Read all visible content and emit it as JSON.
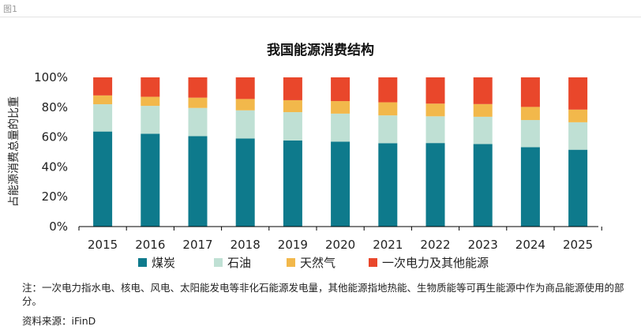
{
  "figure_label": "图1",
  "note": "注：一次电力指水电、核电、风电、太阳能发电等非化石能源发电量，其他能源指地热能、生物质能等可再生能源中作为商品能源使用的部分。",
  "source_label": "资料来源：",
  "source_value": "iFinD",
  "colors": {
    "coal": "#0e7a8c",
    "oil": "#bfe0d4",
    "gas": "#f2b84b",
    "primary_power": "#e9472b"
  },
  "chart_data": {
    "type": "bar",
    "stacked": true,
    "title": "我国能源消费结构",
    "xlabel": "",
    "ylabel": "占能源消费总量的比重",
    "ylim": [
      0,
      100
    ],
    "yticks": [
      "0%",
      "20%",
      "40%",
      "60%",
      "80%",
      "100%"
    ],
    "grid": false,
    "legend_position": "bottom",
    "categories": [
      "2015",
      "2016",
      "2017",
      "2018",
      "2019",
      "2020",
      "2021",
      "2022",
      "2023",
      "2024",
      "2025"
    ],
    "series": [
      {
        "name": "煤炭",
        "color": "#0e7a8c",
        "values": [
          63.7,
          62.2,
          60.6,
          59.0,
          57.7,
          56.9,
          55.9,
          56.0,
          55.3,
          53.2,
          51.5
        ]
      },
      {
        "name": "石油",
        "color": "#bfe0d4",
        "values": [
          18.3,
          18.7,
          18.9,
          18.9,
          19.0,
          18.8,
          18.6,
          17.9,
          18.3,
          18.2,
          18.4
        ]
      },
      {
        "name": "天然气",
        "color": "#f2b84b",
        "values": [
          5.9,
          6.1,
          6.9,
          7.6,
          8.0,
          8.4,
          8.8,
          8.5,
          8.5,
          8.8,
          8.5
        ]
      },
      {
        "name": "一次电力及其他能源",
        "color": "#e9472b",
        "values": [
          12.1,
          13.0,
          13.6,
          14.5,
          15.3,
          15.9,
          16.7,
          17.6,
          17.9,
          19.8,
          21.6
        ]
      }
    ]
  }
}
